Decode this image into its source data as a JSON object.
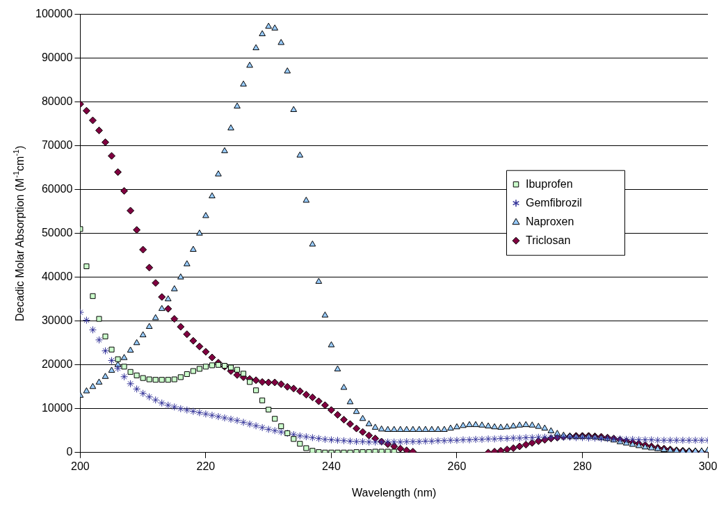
{
  "chart_data": {
    "type": "scatter",
    "xlabel": "Wavelength (nm)",
    "ylabel": "Decadic Molar Absorption (M$^{-1}$cm$^{-1}$)",
    "x": [
      200,
      201,
      202,
      203,
      204,
      205,
      206,
      207,
      208,
      209,
      210,
      211,
      212,
      213,
      214,
      215,
      216,
      217,
      218,
      219,
      220,
      221,
      222,
      223,
      224,
      225,
      226,
      227,
      228,
      229,
      230,
      231,
      232,
      233,
      234,
      235,
      236,
      237,
      238,
      239,
      240,
      241,
      242,
      243,
      244,
      245,
      246,
      247,
      248,
      249,
      250,
      251,
      252,
      253,
      254,
      255,
      256,
      257,
      258,
      259,
      260,
      261,
      262,
      263,
      264,
      265,
      266,
      267,
      268,
      269,
      270,
      271,
      272,
      273,
      274,
      275,
      276,
      277,
      278,
      279,
      280,
      281,
      282,
      283,
      284,
      285,
      286,
      287,
      288,
      289,
      290,
      291,
      292,
      293,
      294,
      295,
      296,
      297,
      298,
      299,
      300
    ],
    "xlim": [
      200,
      300
    ],
    "xticks": [
      200,
      220,
      240,
      260,
      280,
      300
    ],
    "ylim": [
      0,
      100000
    ],
    "yticks": [
      0,
      10000,
      20000,
      30000,
      40000,
      50000,
      60000,
      70000,
      80000,
      90000,
      100000
    ],
    "grid": "y",
    "legend": "right",
    "series": [
      {
        "name": "Ibuprofen",
        "color": "#ccffcc",
        "marker": "square",
        "values": [
          51000,
          42500,
          35700,
          30500,
          26500,
          23500,
          21300,
          19600,
          18400,
          17600,
          17000,
          16700,
          16600,
          16600,
          16600,
          16700,
          17200,
          17900,
          18600,
          19100,
          19600,
          19900,
          20000,
          19800,
          19400,
          18900,
          18000,
          16100,
          14200,
          11900,
          9800,
          7700,
          6000,
          4400,
          3100,
          2000,
          1000,
          400,
          100,
          0,
          0,
          0,
          0,
          0,
          100,
          100,
          100,
          200,
          200,
          200,
          200,
          null,
          null,
          null,
          null,
          null,
          null,
          null,
          null,
          null,
          null,
          null,
          null,
          null,
          null,
          null,
          null,
          null,
          null,
          null,
          null,
          null,
          null,
          null,
          null,
          null,
          null,
          null,
          null,
          null,
          null,
          null,
          null,
          null,
          null,
          null,
          null,
          null,
          null,
          null,
          null,
          null,
          null,
          null,
          null,
          null,
          null,
          null,
          null,
          null,
          null
        ]
      },
      {
        "name": "Gemfibrozil",
        "color": "#333399",
        "marker": "cross",
        "values": [
          32000,
          30200,
          28000,
          25700,
          23200,
          21000,
          19200,
          17300,
          15700,
          14500,
          13500,
          12700,
          12000,
          11300,
          10800,
          10400,
          10000,
          9700,
          9400,
          9100,
          8800,
          8500,
          8200,
          7900,
          7600,
          7300,
          6900,
          6500,
          6100,
          5700,
          5300,
          5000,
          4700,
          4400,
          4100,
          3800,
          3600,
          3400,
          3200,
          3000,
          2900,
          2800,
          2700,
          2600,
          2500,
          2500,
          2400,
          2400,
          2400,
          2400,
          2400,
          2400,
          2500,
          2500,
          2500,
          2600,
          2600,
          2700,
          2700,
          2800,
          2800,
          2900,
          2900,
          3000,
          3000,
          3100,
          3100,
          3200,
          3200,
          3300,
          3300,
          3400,
          3400,
          3500,
          3500,
          3500,
          3500,
          3500,
          3500,
          3400,
          3400,
          3300,
          3300,
          3200,
          3200,
          3100,
          3100,
          3000,
          3000,
          2900,
          2900,
          2900,
          2800,
          2800,
          2800,
          2800,
          2800,
          2800,
          2800,
          2800,
          2800
        ]
      },
      {
        "name": "Naproxen",
        "color": "#99ccff",
        "marker": "triangle",
        "values": [
          13000,
          14000,
          15000,
          16000,
          17300,
          18700,
          20000,
          21600,
          23300,
          25000,
          26800,
          28700,
          30700,
          32800,
          35000,
          37300,
          40000,
          43000,
          46300,
          50000,
          54000,
          58500,
          63500,
          68800,
          74000,
          79000,
          84000,
          88300,
          92300,
          95500,
          97200,
          96800,
          93500,
          87000,
          78200,
          67800,
          57500,
          47500,
          39000,
          31300,
          24500,
          19000,
          14800,
          11500,
          9300,
          7700,
          6500,
          5700,
          5300,
          5200,
          5200,
          5200,
          5200,
          5200,
          5200,
          5200,
          5200,
          5200,
          5200,
          5500,
          5800,
          6100,
          6300,
          6300,
          6200,
          6000,
          5800,
          5700,
          5800,
          6000,
          6200,
          6300,
          6200,
          5900,
          5500,
          4900,
          4300,
          3900,
          3700,
          3600,
          3600,
          3600,
          3500,
          3300,
          3100,
          2800,
          2400,
          2100,
          1800,
          1500,
          1200,
          1000,
          800,
          600,
          500,
          400,
          300,
          300,
          300,
          300,
          500
        ]
      },
      {
        "name": "Triclosan",
        "color": "#800040",
        "marker": "diamond",
        "values": [
          79500,
          78000,
          75800,
          73500,
          70800,
          67700,
          64000,
          59700,
          55200,
          50800,
          46300,
          42200,
          38700,
          35500,
          32800,
          30500,
          28700,
          27000,
          25500,
          24200,
          23000,
          21700,
          20500,
          19600,
          18600,
          17700,
          17200,
          16800,
          16500,
          16100,
          16000,
          16000,
          15600,
          15000,
          14600,
          14000,
          13200,
          12600,
          11700,
          10800,
          9700,
          8600,
          7500,
          6500,
          5500,
          4700,
          3900,
          3200,
          2500,
          1900,
          1400,
          900,
          500,
          200,
          null,
          null,
          null,
          null,
          null,
          null,
          null,
          null,
          null,
          null,
          null,
          0,
          200,
          400,
          700,
          1000,
          1400,
          1800,
          2200,
          2600,
          2900,
          3200,
          3400,
          3600,
          3700,
          3800,
          3800,
          3800,
          3700,
          3600,
          3400,
          3200,
          2900,
          2600,
          2300,
          2000,
          1700,
          1400,
          1100,
          900,
          700,
          500,
          400,
          300,
          200,
          100,
          100
        ]
      }
    ]
  }
}
